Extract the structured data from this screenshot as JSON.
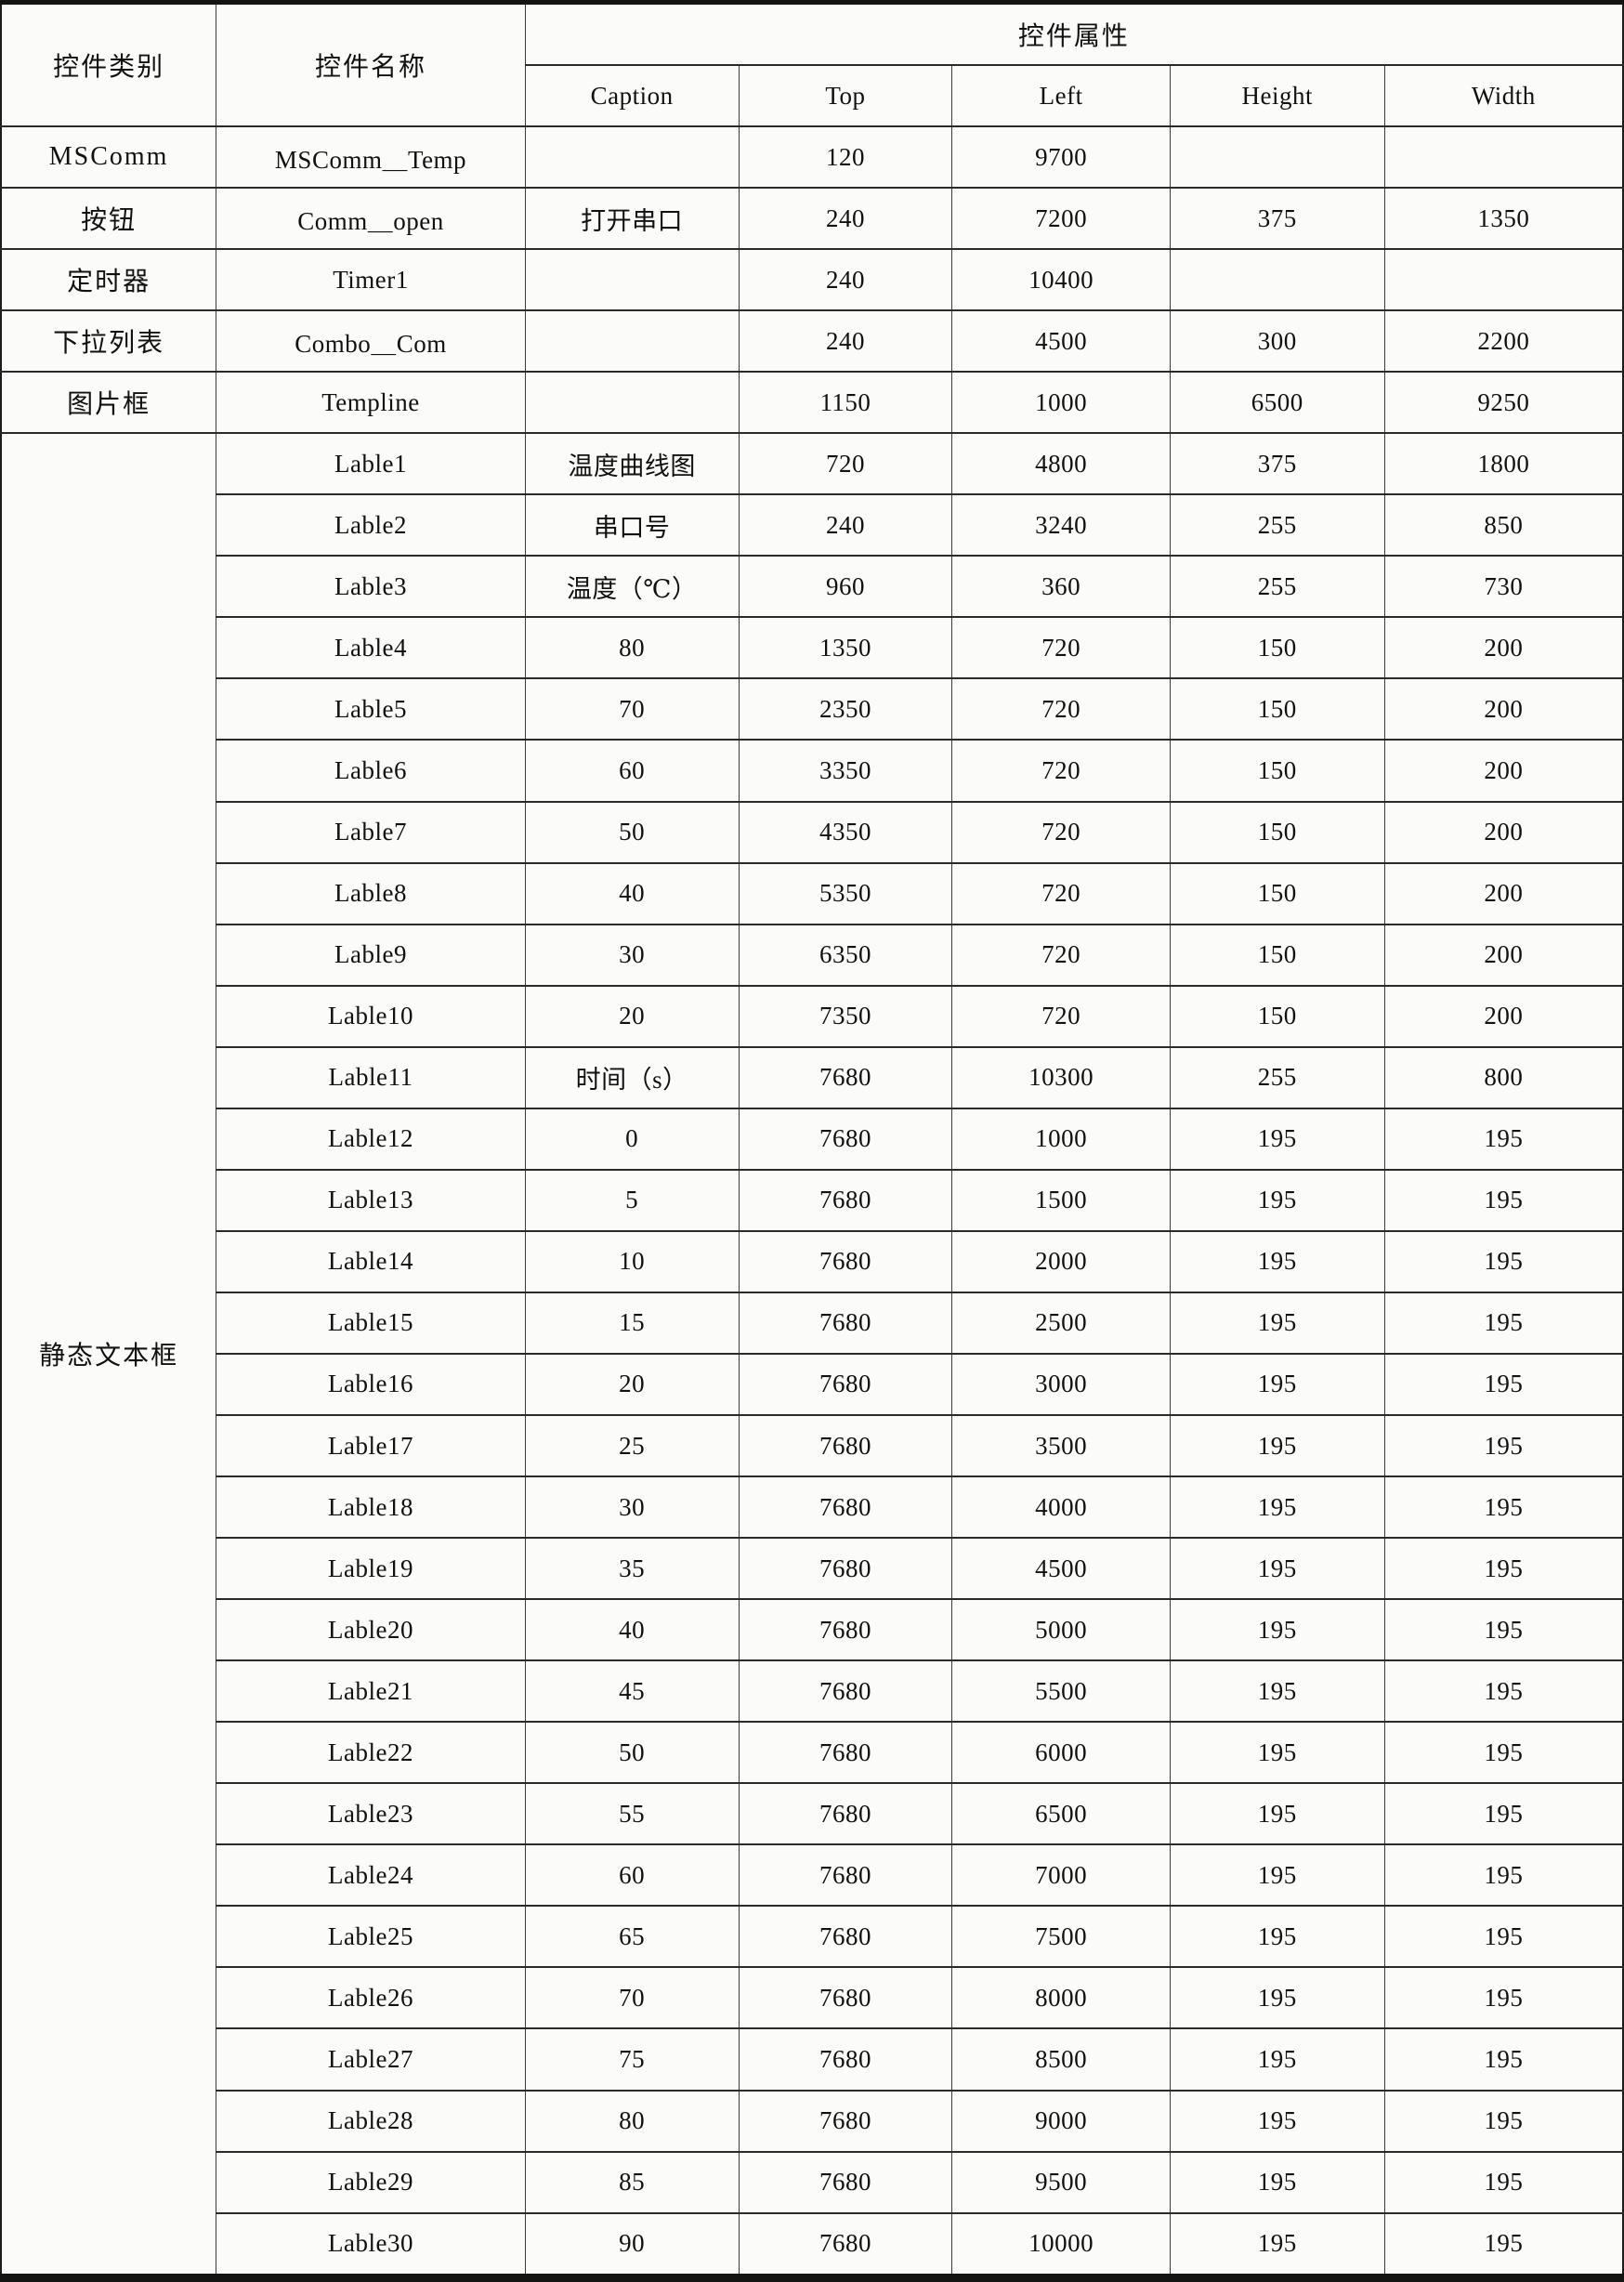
{
  "table": {
    "header": {
      "col_category": "控件类别",
      "col_name": "控件名称",
      "col_props": "控件属性",
      "sub_cols": [
        "Caption",
        "Top",
        "Left",
        "Height",
        "Width"
      ]
    },
    "groups": [
      {
        "category": "MSComm",
        "rows": [
          {
            "name": "MSComm＿Temp",
            "caption": "",
            "top": "120",
            "left": "9700",
            "height": "",
            "width": ""
          }
        ]
      },
      {
        "category": "按钮",
        "rows": [
          {
            "name": "Comm＿open",
            "caption": "打开串口",
            "top": "240",
            "left": "7200",
            "height": "375",
            "width": "1350"
          }
        ]
      },
      {
        "category": "定时器",
        "rows": [
          {
            "name": "Timer1",
            "caption": "",
            "top": "240",
            "left": "10400",
            "height": "",
            "width": ""
          }
        ]
      },
      {
        "category": "下拉列表",
        "rows": [
          {
            "name": "Combo＿Com",
            "caption": "",
            "top": "240",
            "left": "4500",
            "height": "300",
            "width": "2200"
          }
        ]
      },
      {
        "category": "图片框",
        "rows": [
          {
            "name": "Templine",
            "caption": "",
            "top": "1150",
            "left": "1000",
            "height": "6500",
            "width": "9250"
          }
        ]
      },
      {
        "category": "静态文本框",
        "rows": [
          {
            "name": "Lable1",
            "caption": "温度曲线图",
            "top": "720",
            "left": "4800",
            "height": "375",
            "width": "1800"
          },
          {
            "name": "Lable2",
            "caption": "串口号",
            "top": "240",
            "left": "3240",
            "height": "255",
            "width": "850"
          },
          {
            "name": "Lable3",
            "caption": "温度（℃）",
            "top": "960",
            "left": "360",
            "height": "255",
            "width": "730"
          },
          {
            "name": "Lable4",
            "caption": "80",
            "top": "1350",
            "left": "720",
            "height": "150",
            "width": "200"
          },
          {
            "name": "Lable5",
            "caption": "70",
            "top": "2350",
            "left": "720",
            "height": "150",
            "width": "200"
          },
          {
            "name": "Lable6",
            "caption": "60",
            "top": "3350",
            "left": "720",
            "height": "150",
            "width": "200"
          },
          {
            "name": "Lable7",
            "caption": "50",
            "top": "4350",
            "left": "720",
            "height": "150",
            "width": "200"
          },
          {
            "name": "Lable8",
            "caption": "40",
            "top": "5350",
            "left": "720",
            "height": "150",
            "width": "200"
          },
          {
            "name": "Lable9",
            "caption": "30",
            "top": "6350",
            "left": "720",
            "height": "150",
            "width": "200"
          },
          {
            "name": "Lable10",
            "caption": "20",
            "top": "7350",
            "left": "720",
            "height": "150",
            "width": "200"
          },
          {
            "name": "Lable11",
            "caption": "时间（s）",
            "top": "7680",
            "left": "10300",
            "height": "255",
            "width": "800"
          },
          {
            "name": "Lable12",
            "caption": "0",
            "top": "7680",
            "left": "1000",
            "height": "195",
            "width": "195"
          },
          {
            "name": "Lable13",
            "caption": "5",
            "top": "7680",
            "left": "1500",
            "height": "195",
            "width": "195"
          },
          {
            "name": "Lable14",
            "caption": "10",
            "top": "7680",
            "left": "2000",
            "height": "195",
            "width": "195"
          },
          {
            "name": "Lable15",
            "caption": "15",
            "top": "7680",
            "left": "2500",
            "height": "195",
            "width": "195"
          },
          {
            "name": "Lable16",
            "caption": "20",
            "top": "7680",
            "left": "3000",
            "height": "195",
            "width": "195"
          },
          {
            "name": "Lable17",
            "caption": "25",
            "top": "7680",
            "left": "3500",
            "height": "195",
            "width": "195"
          },
          {
            "name": "Lable18",
            "caption": "30",
            "top": "7680",
            "left": "4000",
            "height": "195",
            "width": "195"
          },
          {
            "name": "Lable19",
            "caption": "35",
            "top": "7680",
            "left": "4500",
            "height": "195",
            "width": "195"
          },
          {
            "name": "Lable20",
            "caption": "40",
            "top": "7680",
            "left": "5000",
            "height": "195",
            "width": "195"
          },
          {
            "name": "Lable21",
            "caption": "45",
            "top": "7680",
            "left": "5500",
            "height": "195",
            "width": "195"
          },
          {
            "name": "Lable22",
            "caption": "50",
            "top": "7680",
            "left": "6000",
            "height": "195",
            "width": "195"
          },
          {
            "name": "Lable23",
            "caption": "55",
            "top": "7680",
            "left": "6500",
            "height": "195",
            "width": "195"
          },
          {
            "name": "Lable24",
            "caption": "60",
            "top": "7680",
            "left": "7000",
            "height": "195",
            "width": "195"
          },
          {
            "name": "Lable25",
            "caption": "65",
            "top": "7680",
            "left": "7500",
            "height": "195",
            "width": "195"
          },
          {
            "name": "Lable26",
            "caption": "70",
            "top": "7680",
            "left": "8000",
            "height": "195",
            "width": "195"
          },
          {
            "name": "Lable27",
            "caption": "75",
            "top": "7680",
            "left": "8500",
            "height": "195",
            "width": "195"
          },
          {
            "name": "Lable28",
            "caption": "80",
            "top": "7680",
            "left": "9000",
            "height": "195",
            "width": "195"
          },
          {
            "name": "Lable29",
            "caption": "85",
            "top": "7680",
            "left": "9500",
            "height": "195",
            "width": "195"
          },
          {
            "name": "Lable30",
            "caption": "90",
            "top": "7680",
            "left": "10000",
            "height": "195",
            "width": "195"
          }
        ]
      }
    ]
  }
}
